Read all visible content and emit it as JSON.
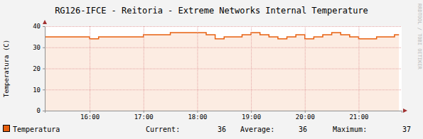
{
  "chart_data": {
    "type": "area",
    "title": "RG126-IFCE - Reitoria - Extreme Networks Internal Temperature",
    "y_label": "Temperatura (C)",
    "credit": "RRDTOOL / TOBI OETIKER",
    "x": [
      910,
      920,
      930,
      940,
      950,
      960,
      970,
      980,
      990,
      1000,
      1010,
      1020,
      1030,
      1040,
      1050,
      1060,
      1070,
      1080,
      1090,
      1100,
      1110,
      1120,
      1130,
      1140,
      1150,
      1160,
      1170,
      1180,
      1190,
      1200,
      1210,
      1220,
      1230,
      1240,
      1250,
      1260,
      1270,
      1280,
      1290,
      1300,
      1305
    ],
    "series": [
      {
        "name": "Temperatura",
        "color": "#e8600f",
        "values": [
          35,
          35,
          35,
          35,
          35,
          34,
          35,
          35,
          35,
          35,
          35,
          36,
          36,
          36,
          37,
          37,
          37,
          37,
          36,
          34,
          35,
          35,
          36,
          37,
          36,
          35,
          34,
          35,
          36,
          34,
          35,
          36,
          37,
          36,
          35,
          34,
          34,
          35,
          35,
          36,
          36
        ]
      }
    ],
    "stats": [
      {
        "label": "Current:",
        "value": 36
      },
      {
        "label": "Average:",
        "value": 36
      },
      {
        "label": "Maximum:",
        "value": 37
      }
    ],
    "xlim": [
      910,
      1308
    ],
    "xticks": [
      {
        "value": 960,
        "label": "16:00"
      },
      {
        "value": 1020,
        "label": "17:00"
      },
      {
        "value": 1080,
        "label": "18:00"
      },
      {
        "value": 1140,
        "label": "19:00"
      },
      {
        "value": 1200,
        "label": "20:00"
      },
      {
        "value": 1260,
        "label": "21:00"
      }
    ],
    "ylim": [
      0,
      40
    ],
    "yticks": [
      0,
      10,
      20,
      30,
      40
    ],
    "grid": true
  }
}
